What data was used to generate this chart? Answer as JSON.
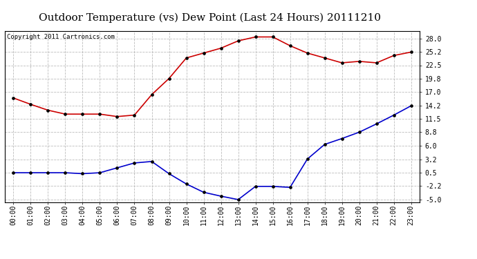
{
  "title": "Outdoor Temperature (vs) Dew Point (Last 24 Hours) 20111210",
  "copyright": "Copyright 2011 Cartronics.com",
  "hours": [
    "00:00",
    "01:00",
    "02:00",
    "03:00",
    "04:00",
    "05:00",
    "06:00",
    "07:00",
    "08:00",
    "09:00",
    "10:00",
    "11:00",
    "12:00",
    "13:00",
    "14:00",
    "15:00",
    "16:00",
    "17:00",
    "18:00",
    "19:00",
    "20:00",
    "21:00",
    "22:00",
    "23:00"
  ],
  "temp": [
    15.8,
    14.5,
    13.3,
    12.5,
    12.5,
    12.5,
    12.0,
    12.3,
    16.5,
    19.8,
    24.0,
    25.0,
    26.0,
    27.5,
    28.3,
    28.3,
    26.5,
    25.0,
    24.0,
    23.0,
    23.3,
    23.0,
    24.5,
    25.2
  ],
  "dew": [
    0.5,
    0.5,
    0.5,
    0.5,
    0.3,
    0.5,
    1.5,
    2.5,
    2.8,
    0.3,
    -1.8,
    -3.5,
    -4.3,
    -5.0,
    -2.3,
    -2.3,
    -2.5,
    3.3,
    6.3,
    7.5,
    8.8,
    10.5,
    12.3,
    14.2
  ],
  "temp_color": "#cc0000",
  "dew_color": "#0000cc",
  "background_color": "#ffffff",
  "plot_bg_color": "#ffffff",
  "grid_color": "#bbbbbb",
  "ylim": [
    -5.5,
    29.5
  ],
  "yticks": [
    -5.0,
    -2.2,
    0.5,
    3.2,
    6.0,
    8.8,
    11.5,
    14.2,
    17.0,
    19.8,
    22.5,
    25.2,
    28.0
  ],
  "title_fontsize": 11,
  "tick_fontsize": 7,
  "copyright_fontsize": 6.5
}
